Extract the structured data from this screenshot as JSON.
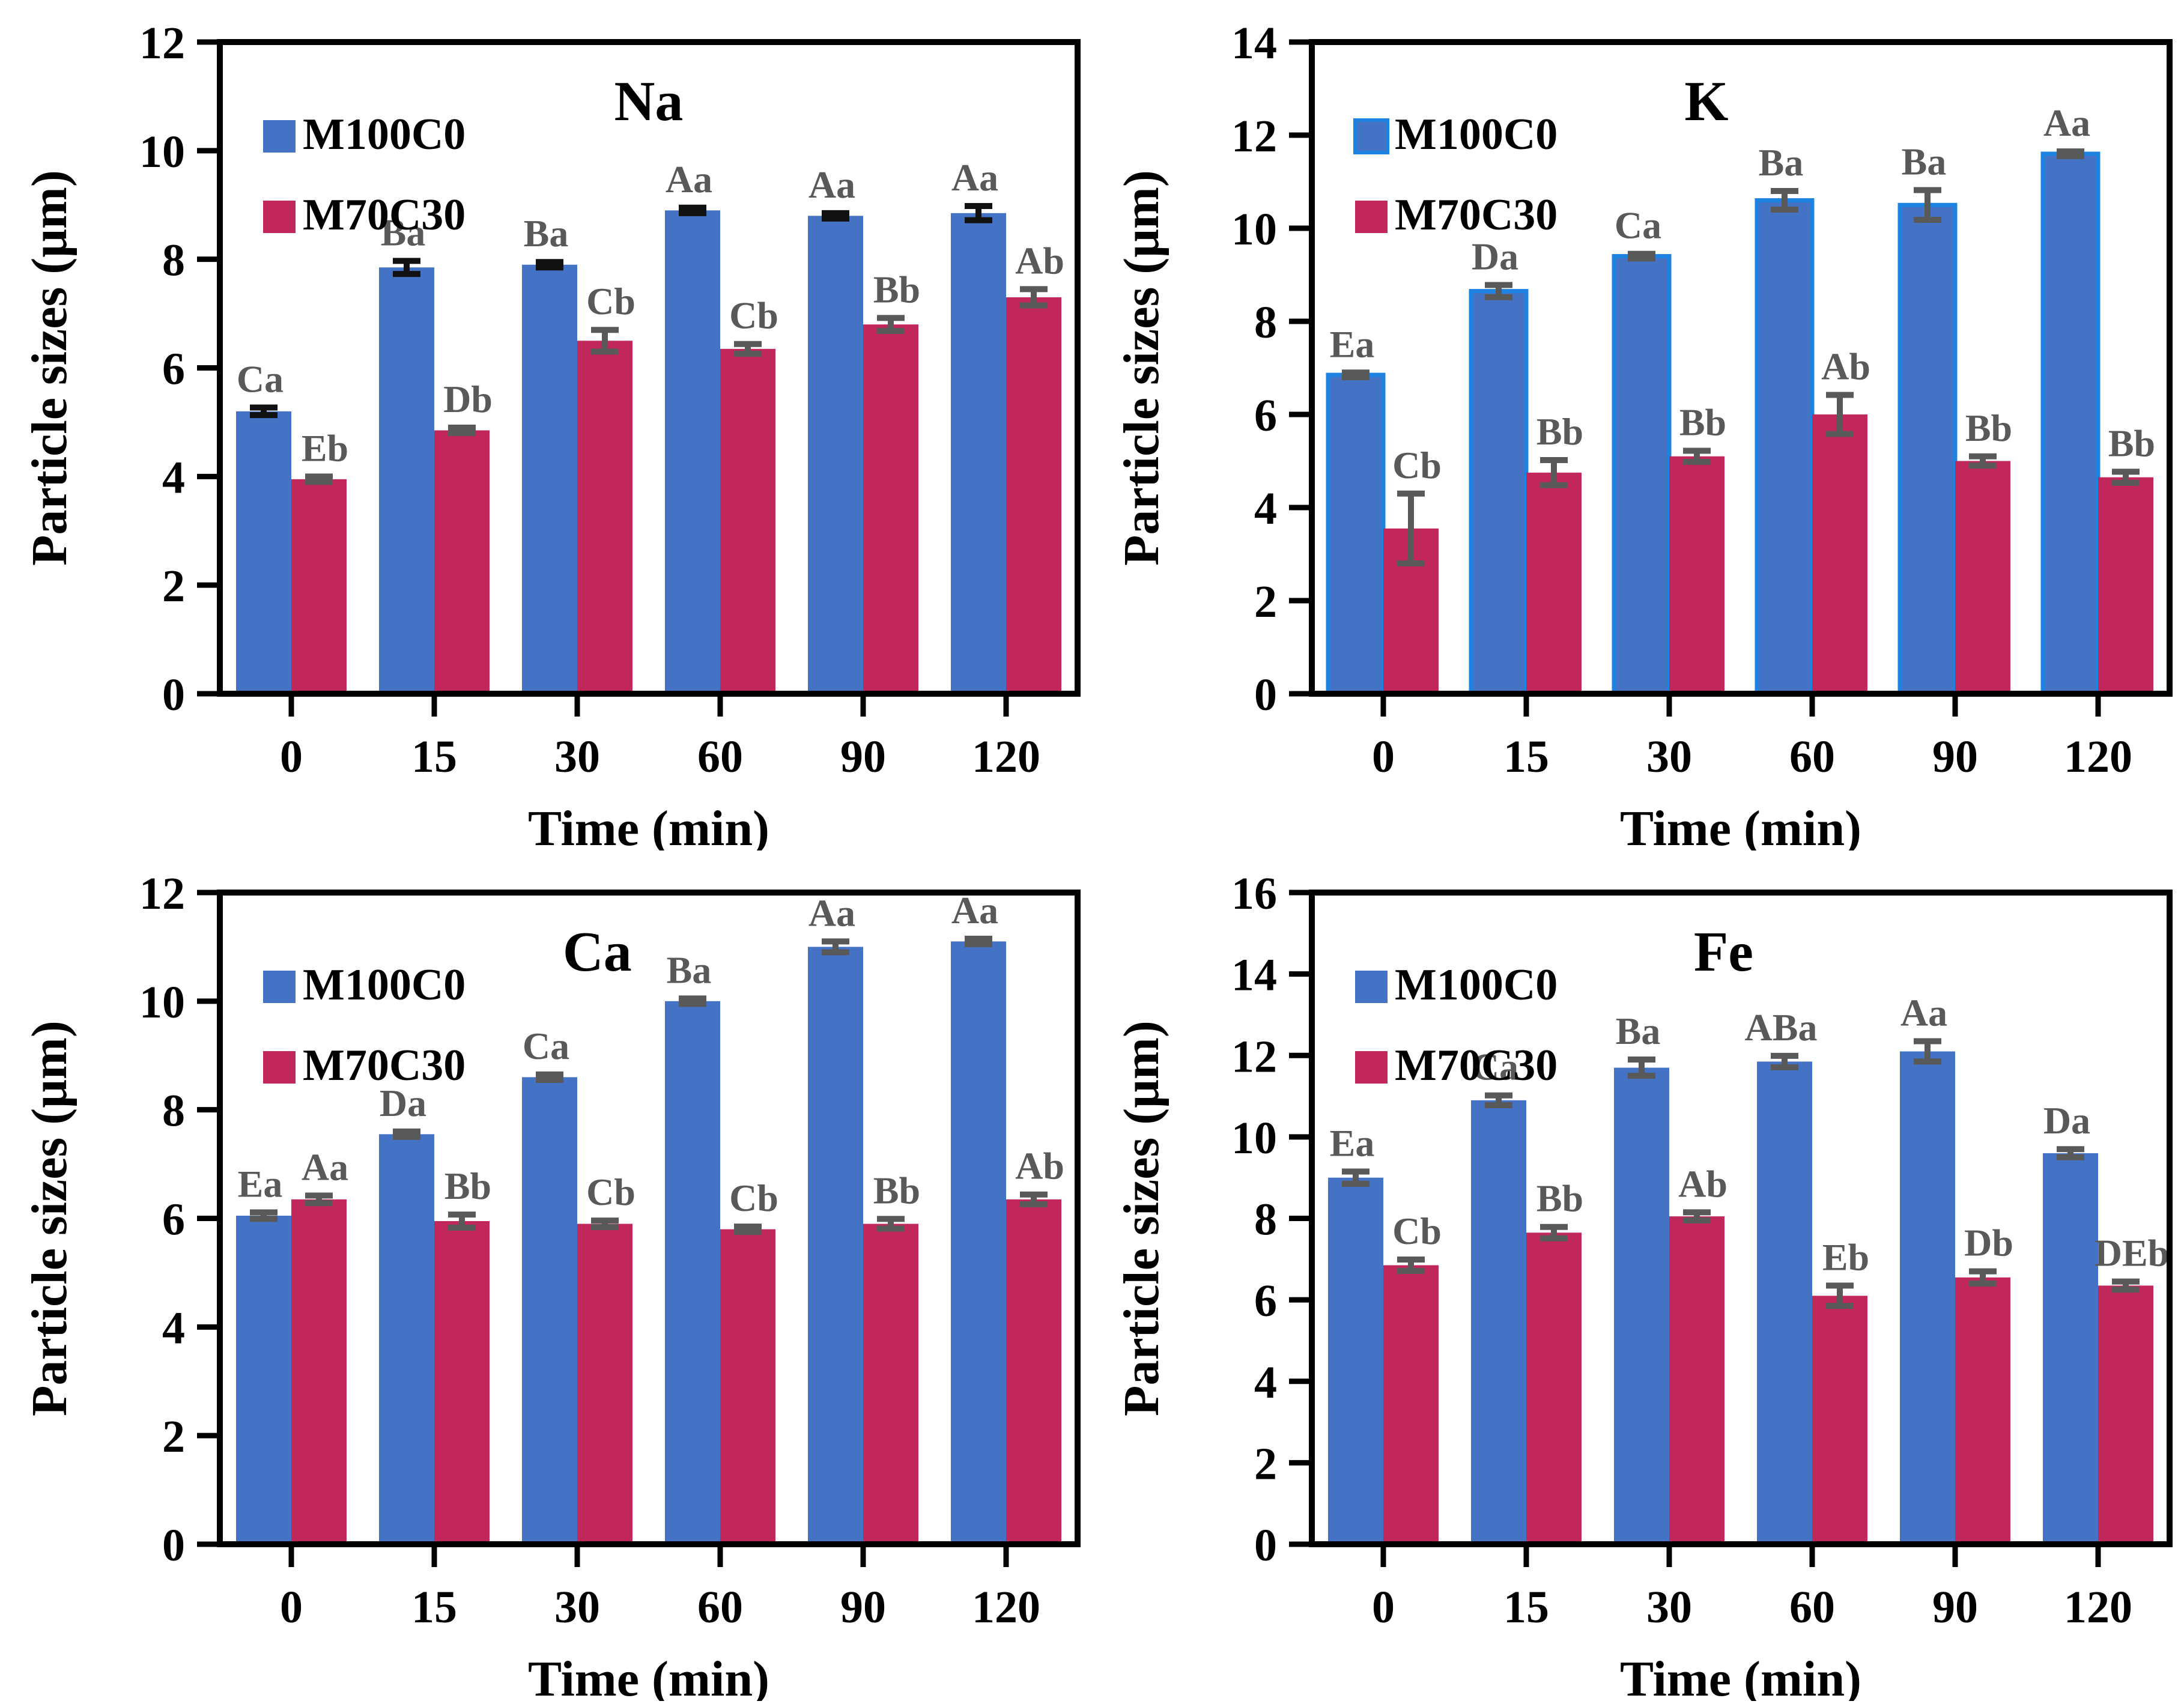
{
  "figure": {
    "ylabel": "Particle sizes (μm)",
    "xlabel": "Time (min)",
    "legend_entries": [
      "M100C0",
      "M70C30"
    ],
    "colors": {
      "m100c0_blue": "#4472C4",
      "m100c0_outline_k_panel": "#1E82E0",
      "m70c30_crimson": "#C2275C",
      "significance_label_gray": "#595959",
      "axis_black": "#000000"
    }
  },
  "chart_data": [
    {
      "type": "bar",
      "title": "Na",
      "title_x_frac": 0.5,
      "ylim": [
        0,
        12
      ],
      "yticks": [
        "0",
        "2",
        "4",
        "6",
        "8",
        "10",
        "12"
      ],
      "categories": [
        "0",
        "15",
        "30",
        "60",
        "90",
        "120"
      ],
      "xlabel": "Time (min)",
      "ylabel": "Particle sizes (μm)",
      "legend_position": "top-left",
      "grid": false,
      "series": [
        {
          "name": "M100C0",
          "color": "#4472C4",
          "error_color": "#111111",
          "values": [
            5.2,
            7.85,
            7.9,
            8.9,
            8.8,
            8.85
          ],
          "errors": [
            0.07,
            0.12,
            0.05,
            0.05,
            0.05,
            0.13
          ],
          "sig_labels": [
            "Ca",
            "Ba",
            "Ba",
            "Aa",
            "Aa",
            "Aa"
          ]
        },
        {
          "name": "M70C30",
          "color": "#C2275C",
          "error_color": "#595959",
          "values": [
            3.95,
            4.85,
            6.5,
            6.35,
            6.8,
            7.3
          ],
          "errors": [
            0.05,
            0.05,
            0.2,
            0.09,
            0.12,
            0.15
          ],
          "sig_labels": [
            "Eb",
            "Db",
            "Cb",
            "Cb",
            "Bb",
            "Ab"
          ]
        }
      ]
    },
    {
      "type": "bar",
      "title": "K",
      "title_x_frac": 0.46,
      "ylim": [
        0,
        14
      ],
      "yticks": [
        "0",
        "2",
        "4",
        "6",
        "8",
        "10",
        "12",
        "14"
      ],
      "categories": [
        "0",
        "15",
        "30",
        "60",
        "90",
        "120"
      ],
      "xlabel": "Time (min)",
      "ylabel": "Particle sizes (μm)",
      "legend_position": "top-left",
      "grid": false,
      "series": [
        {
          "name": "M100C0",
          "color": "#4472C4",
          "stroke": "#1E82E0",
          "error_color": "#595959",
          "values": [
            6.85,
            8.65,
            9.4,
            10.6,
            10.5,
            11.6
          ],
          "errors": [
            0.05,
            0.13,
            0.05,
            0.2,
            0.32,
            0.05
          ],
          "sig_labels": [
            "Ea",
            "Da",
            "Ca",
            "Ba",
            "Ba",
            "Aa"
          ]
        },
        {
          "name": "M70C30",
          "color": "#C2275C",
          "error_color": "#595959",
          "values": [
            3.55,
            4.75,
            5.1,
            6.0,
            5.0,
            4.65
          ],
          "errors": [
            0.75,
            0.27,
            0.12,
            0.42,
            0.1,
            0.12
          ],
          "sig_labels": [
            "Cb",
            "Bb",
            "Bb",
            "Ab",
            "Bb",
            "Bb"
          ]
        }
      ]
    },
    {
      "type": "bar",
      "title": "Ca",
      "title_x_frac": 0.44,
      "ylim": [
        0,
        12
      ],
      "yticks": [
        "0",
        "2",
        "4",
        "6",
        "8",
        "10",
        "12"
      ],
      "categories": [
        "0",
        "15",
        "30",
        "60",
        "90",
        "120"
      ],
      "xlabel": "Time (min)",
      "ylabel": "Particle sizes (μm)",
      "legend_position": "top-left",
      "grid": false,
      "series": [
        {
          "name": "M100C0",
          "color": "#4472C4",
          "error_color": "#595959",
          "values": [
            6.05,
            7.55,
            8.6,
            10.0,
            11.0,
            11.1
          ],
          "errors": [
            0.06,
            0.05,
            0.05,
            0.05,
            0.1,
            0.05
          ],
          "sig_labels": [
            "Ea",
            "Da",
            "Ca",
            "Ba",
            "Aa",
            "Aa"
          ]
        },
        {
          "name": "M70C30",
          "color": "#C2275C",
          "error_color": "#595959",
          "values": [
            6.35,
            5.95,
            5.9,
            5.8,
            5.9,
            6.35
          ],
          "errors": [
            0.07,
            0.12,
            0.06,
            0.05,
            0.09,
            0.09
          ],
          "sig_labels": [
            "Aa",
            "Bb",
            "Cb",
            "Cb",
            "Bb",
            "Ab"
          ]
        }
      ]
    },
    {
      "type": "bar",
      "title": "Fe",
      "title_x_frac": 0.48,
      "ylim": [
        0,
        16
      ],
      "yticks": [
        "0",
        "2",
        "4",
        "6",
        "8",
        "10",
        "12",
        "14",
        "16"
      ],
      "categories": [
        "0",
        "15",
        "30",
        "60",
        "90",
        "120"
      ],
      "xlabel": "Time (min)",
      "ylabel": "Particle sizes (μm)",
      "legend_position": "top-left",
      "grid": false,
      "series": [
        {
          "name": "M100C0",
          "color": "#4472C4",
          "error_color": "#595959",
          "values": [
            9.0,
            10.9,
            11.7,
            11.85,
            12.1,
            9.6
          ],
          "errors": [
            0.15,
            0.12,
            0.2,
            0.14,
            0.25,
            0.1
          ],
          "sig_labels": [
            "Ea",
            "Ca",
            "Ba",
            "ABa",
            "Aa",
            "Da"
          ]
        },
        {
          "name": "M70C30",
          "color": "#C2275C",
          "error_color": "#595959",
          "values": [
            6.85,
            7.65,
            8.05,
            6.1,
            6.55,
            6.35
          ],
          "errors": [
            0.14,
            0.14,
            0.1,
            0.25,
            0.15,
            0.1
          ],
          "sig_labels": [
            "Cb",
            "Bb",
            "Ab",
            "Eb",
            "Db",
            "DEb"
          ]
        }
      ]
    }
  ]
}
